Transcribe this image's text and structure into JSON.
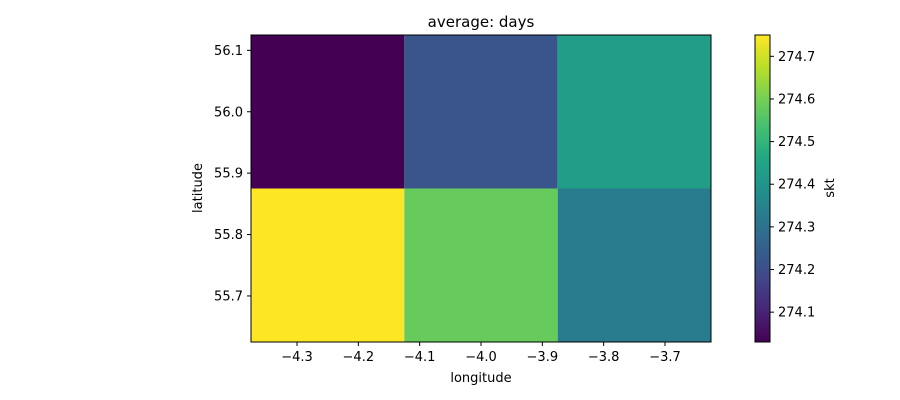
{
  "chart_data": {
    "type": "heatmap",
    "title": "average: days",
    "xlabel": "longitude",
    "ylabel": "latitude",
    "colorbar_label": "skt",
    "colormap": "viridis",
    "x_edges": [
      -4.375,
      -4.125,
      -3.875,
      -3.625
    ],
    "y_edges": [
      55.625,
      55.875,
      56.125
    ],
    "cells": [
      [
        274.75,
        274.58,
        274.33
      ],
      [
        274.03,
        274.22,
        274.43
      ]
    ],
    "vmin": 274.03,
    "vmax": 274.75,
    "xticks": [
      -4.3,
      -4.2,
      -4.1,
      -4.0,
      -3.9,
      -3.8,
      -3.7
    ],
    "xtick_labels": [
      "−4.3",
      "−4.2",
      "−4.1",
      "−4.0",
      "−3.9",
      "−3.8",
      "−3.7"
    ],
    "yticks": [
      55.7,
      55.8,
      55.9,
      56.0,
      56.1
    ],
    "ytick_labels": [
      "55.7",
      "55.8",
      "55.9",
      "56.0",
      "56.1"
    ],
    "cbar_ticks": [
      274.1,
      274.2,
      274.3,
      274.4,
      274.5,
      274.6,
      274.7
    ],
    "cbar_tick_labels": [
      "274.1",
      "274.2",
      "274.3",
      "274.4",
      "274.5",
      "274.6",
      "274.7"
    ]
  }
}
